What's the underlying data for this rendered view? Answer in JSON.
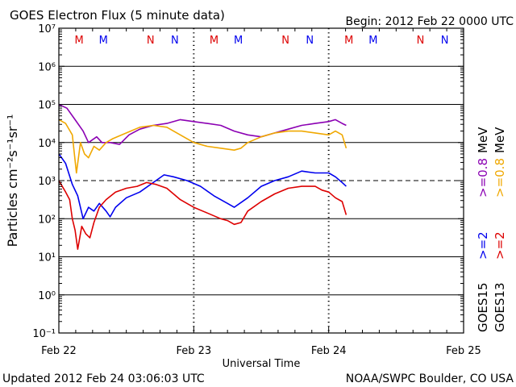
{
  "header": {
    "title": "GOES Electron Flux (5 minute data)",
    "begin": "Begin: 2012 Feb 22 0000 UTC"
  },
  "footer": {
    "updated": "Updated 2012 Feb 24 03:06:03 UTC",
    "credit": "NOAA/SWPC Boulder, CO USA"
  },
  "chart_data": {
    "type": "line",
    "xlabel": "Universal Time",
    "ylabel": "Particles cm⁻²s⁻¹sr⁻¹",
    "yscale": "log",
    "ylim_exp": [
      -1,
      7
    ],
    "xlim_days": [
      0,
      3
    ],
    "x_ticks": [
      "Feb 22",
      "Feb 23",
      "Feb 24",
      "Feb 25"
    ],
    "y_ticks": [
      "10⁻¹",
      "10⁰",
      "10¹",
      "10²",
      "10³",
      "10⁴",
      "10⁵",
      "10⁶",
      "10⁷"
    ],
    "threshold_exp": 3,
    "grid": true,
    "x_units": "days since 2012 Feb 22 0000 UTC",
    "legend": {
      "goes15": "GOES15",
      "goes13": "GOES13",
      "items": [
        {
          "text": ">=2",
          "color": "#0000ee"
        },
        {
          "text": ">=0.8",
          "color": "#8b00b3"
        },
        {
          "text": ">=2",
          "color": "#dd0000"
        },
        {
          "text": ">=0.8",
          "color": "#f0a800"
        },
        {
          "text": "MeV",
          "color": "#000000"
        },
        {
          "text": "MeV",
          "color": "#000000"
        }
      ]
    },
    "markers": [
      {
        "label": "M",
        "x": 0.15,
        "color": "#dd0000"
      },
      {
        "label": "M",
        "x": 0.33,
        "color": "#0000ee"
      },
      {
        "label": "N",
        "x": 0.68,
        "color": "#dd0000"
      },
      {
        "label": "N",
        "x": 0.86,
        "color": "#0000ee"
      },
      {
        "label": "M",
        "x": 1.15,
        "color": "#dd0000"
      },
      {
        "label": "M",
        "x": 1.33,
        "color": "#0000ee"
      },
      {
        "label": "N",
        "x": 1.68,
        "color": "#dd0000"
      },
      {
        "label": "N",
        "x": 1.86,
        "color": "#0000ee"
      },
      {
        "label": "M",
        "x": 2.15,
        "color": "#dd0000"
      },
      {
        "label": "M",
        "x": 2.33,
        "color": "#0000ee"
      },
      {
        "label": "N",
        "x": 2.68,
        "color": "#dd0000"
      },
      {
        "label": "N",
        "x": 2.86,
        "color": "#0000ee"
      }
    ],
    "series": [
      {
        "name": "GOES15 >=0.8 MeV",
        "color": "#8b00b3",
        "points": [
          [
            0,
            5.0
          ],
          [
            0.06,
            4.9
          ],
          [
            0.12,
            4.6
          ],
          [
            0.18,
            4.3
          ],
          [
            0.22,
            4.0
          ],
          [
            0.28,
            4.15
          ],
          [
            0.32,
            4.0
          ],
          [
            0.38,
            4.0
          ],
          [
            0.45,
            3.95
          ],
          [
            0.52,
            4.2
          ],
          [
            0.6,
            4.35
          ],
          [
            0.7,
            4.45
          ],
          [
            0.8,
            4.5
          ],
          [
            0.9,
            4.6
          ],
          [
            1.0,
            4.55
          ],
          [
            1.1,
            4.5
          ],
          [
            1.2,
            4.45
          ],
          [
            1.3,
            4.3
          ],
          [
            1.4,
            4.2
          ],
          [
            1.5,
            4.15
          ],
          [
            1.6,
            4.25
          ],
          [
            1.7,
            4.35
          ],
          [
            1.8,
            4.45
          ],
          [
            1.9,
            4.5
          ],
          [
            2.0,
            4.55
          ],
          [
            2.05,
            4.6
          ],
          [
            2.1,
            4.5
          ],
          [
            2.13,
            4.45
          ]
        ]
      },
      {
        "name": "GOES13 >=0.8 MeV",
        "color": "#f0a800",
        "points": [
          [
            0,
            4.6
          ],
          [
            0.05,
            4.5
          ],
          [
            0.1,
            4.2
          ],
          [
            0.13,
            3.2
          ],
          [
            0.16,
            4.0
          ],
          [
            0.19,
            3.7
          ],
          [
            0.22,
            3.6
          ],
          [
            0.26,
            3.9
          ],
          [
            0.3,
            3.8
          ],
          [
            0.35,
            4.0
          ],
          [
            0.4,
            4.1
          ],
          [
            0.5,
            4.25
          ],
          [
            0.6,
            4.4
          ],
          [
            0.7,
            4.45
          ],
          [
            0.8,
            4.4
          ],
          [
            0.9,
            4.2
          ],
          [
            1.0,
            4.0
          ],
          [
            1.1,
            3.9
          ],
          [
            1.2,
            3.85
          ],
          [
            1.3,
            3.8
          ],
          [
            1.35,
            3.85
          ],
          [
            1.4,
            4.0
          ],
          [
            1.5,
            4.15
          ],
          [
            1.6,
            4.25
          ],
          [
            1.7,
            4.3
          ],
          [
            1.8,
            4.3
          ],
          [
            1.9,
            4.25
          ],
          [
            2.0,
            4.2
          ],
          [
            2.05,
            4.3
          ],
          [
            2.1,
            4.2
          ],
          [
            2.13,
            3.85
          ]
        ]
      },
      {
        "name": "GOES15 >=2 MeV",
        "color": "#0000ee",
        "points": [
          [
            0,
            3.7
          ],
          [
            0.05,
            3.45
          ],
          [
            0.1,
            2.9
          ],
          [
            0.14,
            2.6
          ],
          [
            0.18,
            2.0
          ],
          [
            0.22,
            2.3
          ],
          [
            0.26,
            2.2
          ],
          [
            0.3,
            2.4
          ],
          [
            0.35,
            2.2
          ],
          [
            0.38,
            2.05
          ],
          [
            0.42,
            2.3
          ],
          [
            0.5,
            2.55
          ],
          [
            0.6,
            2.7
          ],
          [
            0.7,
            2.95
          ],
          [
            0.78,
            3.15
          ],
          [
            0.85,
            3.1
          ],
          [
            0.95,
            3.0
          ],
          [
            1.05,
            2.85
          ],
          [
            1.15,
            2.6
          ],
          [
            1.25,
            2.4
          ],
          [
            1.3,
            2.3
          ],
          [
            1.4,
            2.55
          ],
          [
            1.5,
            2.85
          ],
          [
            1.6,
            3.0
          ],
          [
            1.7,
            3.1
          ],
          [
            1.8,
            3.25
          ],
          [
            1.9,
            3.2
          ],
          [
            2.0,
            3.2
          ],
          [
            2.05,
            3.1
          ],
          [
            2.1,
            2.95
          ],
          [
            2.13,
            2.85
          ]
        ]
      },
      {
        "name": "GOES13 >=2 MeV",
        "color": "#dd0000",
        "points": [
          [
            0,
            3.0
          ],
          [
            0.05,
            2.7
          ],
          [
            0.08,
            2.5
          ],
          [
            0.1,
            2.0
          ],
          [
            0.12,
            1.7
          ],
          [
            0.14,
            1.2
          ],
          [
            0.17,
            1.8
          ],
          [
            0.2,
            1.6
          ],
          [
            0.23,
            1.5
          ],
          [
            0.26,
            1.9
          ],
          [
            0.3,
            2.3
          ],
          [
            0.35,
            2.5
          ],
          [
            0.42,
            2.7
          ],
          [
            0.5,
            2.8
          ],
          [
            0.58,
            2.85
          ],
          [
            0.65,
            2.95
          ],
          [
            0.72,
            2.9
          ],
          [
            0.8,
            2.8
          ],
          [
            0.9,
            2.5
          ],
          [
            1.0,
            2.3
          ],
          [
            1.1,
            2.15
          ],
          [
            1.2,
            2.0
          ],
          [
            1.25,
            1.95
          ],
          [
            1.3,
            1.85
          ],
          [
            1.35,
            1.9
          ],
          [
            1.4,
            2.2
          ],
          [
            1.5,
            2.45
          ],
          [
            1.6,
            2.65
          ],
          [
            1.7,
            2.8
          ],
          [
            1.8,
            2.85
          ],
          [
            1.9,
            2.85
          ],
          [
            1.95,
            2.75
          ],
          [
            2.0,
            2.7
          ],
          [
            2.05,
            2.55
          ],
          [
            2.1,
            2.45
          ],
          [
            2.13,
            2.1
          ]
        ]
      }
    ]
  }
}
